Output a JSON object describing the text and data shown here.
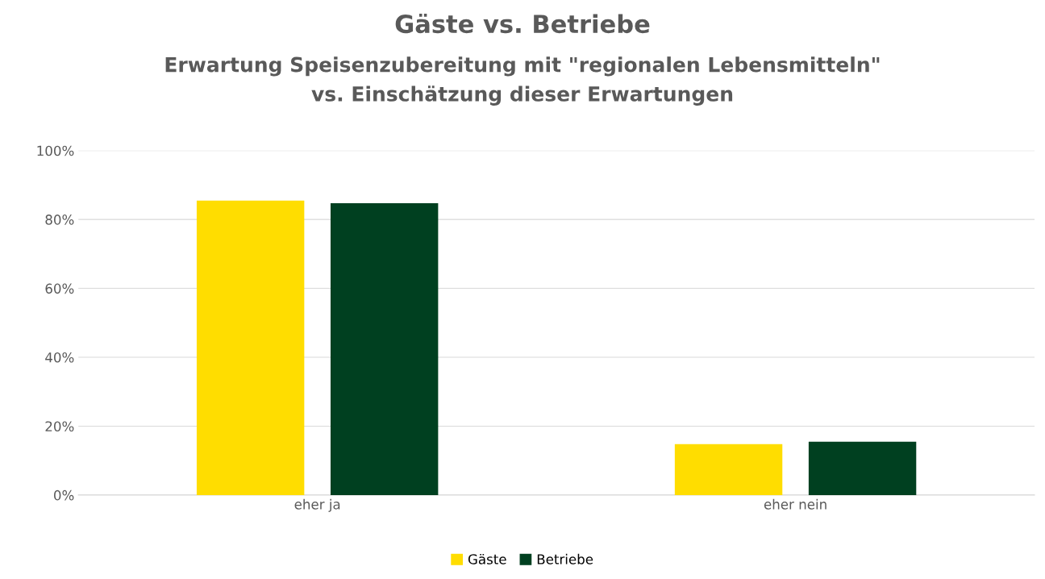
{
  "chart_data": {
    "type": "bar",
    "title": "Gäste vs. Betriebe",
    "subtitle": "Erwartung Speisenzubereitung mit \"regionalen Lebensmitteln\"\nvs. Einschätzung dieser Erwartungen",
    "categories": [
      "eher ja",
      "eher nein"
    ],
    "series": [
      {
        "name": "Gäste",
        "color": "#ffdd00",
        "values": [
          85.5,
          14.8
        ]
      },
      {
        "name": "Betriebe",
        "color": "#004020",
        "values": [
          84.7,
          15.5
        ]
      }
    ],
    "ylim": [
      0,
      100
    ],
    "yticks": [
      {
        "value": 0,
        "label": "0%"
      },
      {
        "value": 20,
        "label": "20%"
      },
      {
        "value": 40,
        "label": "40%"
      },
      {
        "value": 60,
        "label": "60%"
      },
      {
        "value": 80,
        "label": "80%"
      },
      {
        "value": 100,
        "label": "100%"
      }
    ],
    "grid": "y",
    "legend": "bottom"
  }
}
